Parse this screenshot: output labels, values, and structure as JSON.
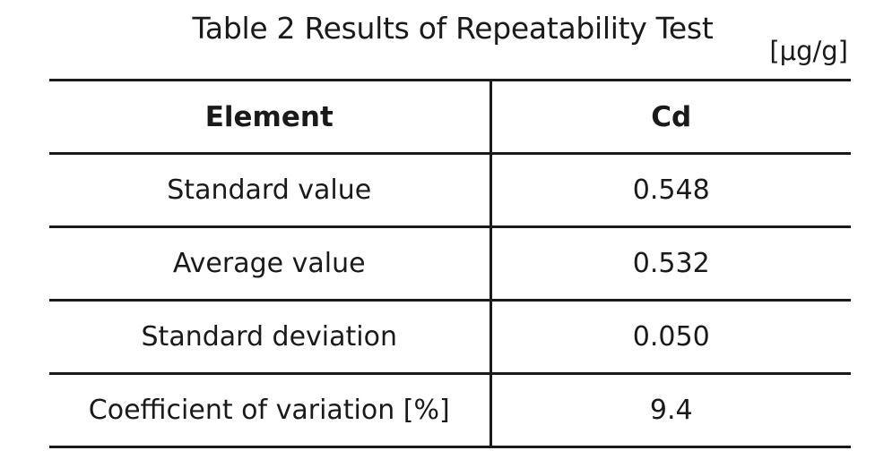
{
  "caption": {
    "title": "Table 2  Results of Repeatability Test",
    "unit": "[μg/g]"
  },
  "table": {
    "headers": [
      "Element",
      "Cd"
    ],
    "rows": [
      {
        "label": "Standard value",
        "value": "0.548"
      },
      {
        "label": "Average value",
        "value": "0.532"
      },
      {
        "label": "Standard deviation",
        "value": "0.050"
      },
      {
        "label": "Coefficient of variation [%]",
        "value": "9.4"
      }
    ]
  }
}
